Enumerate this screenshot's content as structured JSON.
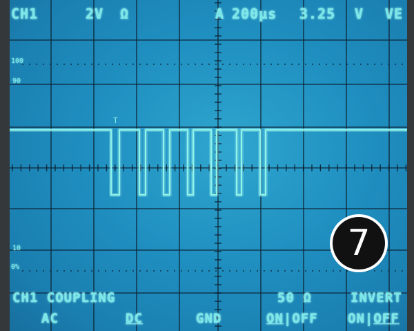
{
  "header": {
    "channel": "CH1",
    "volts_per_div": "2V",
    "impedance_symbol": "Ω",
    "trigger_marker": "A",
    "time_per_div": "200µs",
    "trigger_level": "3.25",
    "trigger_unit": "V",
    "trigger_slope_partial": "VE"
  },
  "graticule_labels": {
    "top_100": "100",
    "top_90": "90",
    "bottom_10": "10",
    "bottom_0": "0%"
  },
  "menu": {
    "coupling_title": "CH1 COUPLING",
    "coupling_ac": "AC",
    "coupling_dc": "DC",
    "coupling_gnd": "GND",
    "impedance_title": "50 Ω",
    "impedance_on": "ON",
    "impedance_off": "OFF",
    "invert_title": "INVERT",
    "invert_on": "ON",
    "invert_off": "OFF",
    "separator": "|"
  },
  "badge": {
    "number": "7"
  },
  "colors": {
    "screen": "#1f8fc0",
    "trace": "#8ff5ea",
    "grid": "#0d1d2e",
    "text": "#7ae8e8"
  }
}
